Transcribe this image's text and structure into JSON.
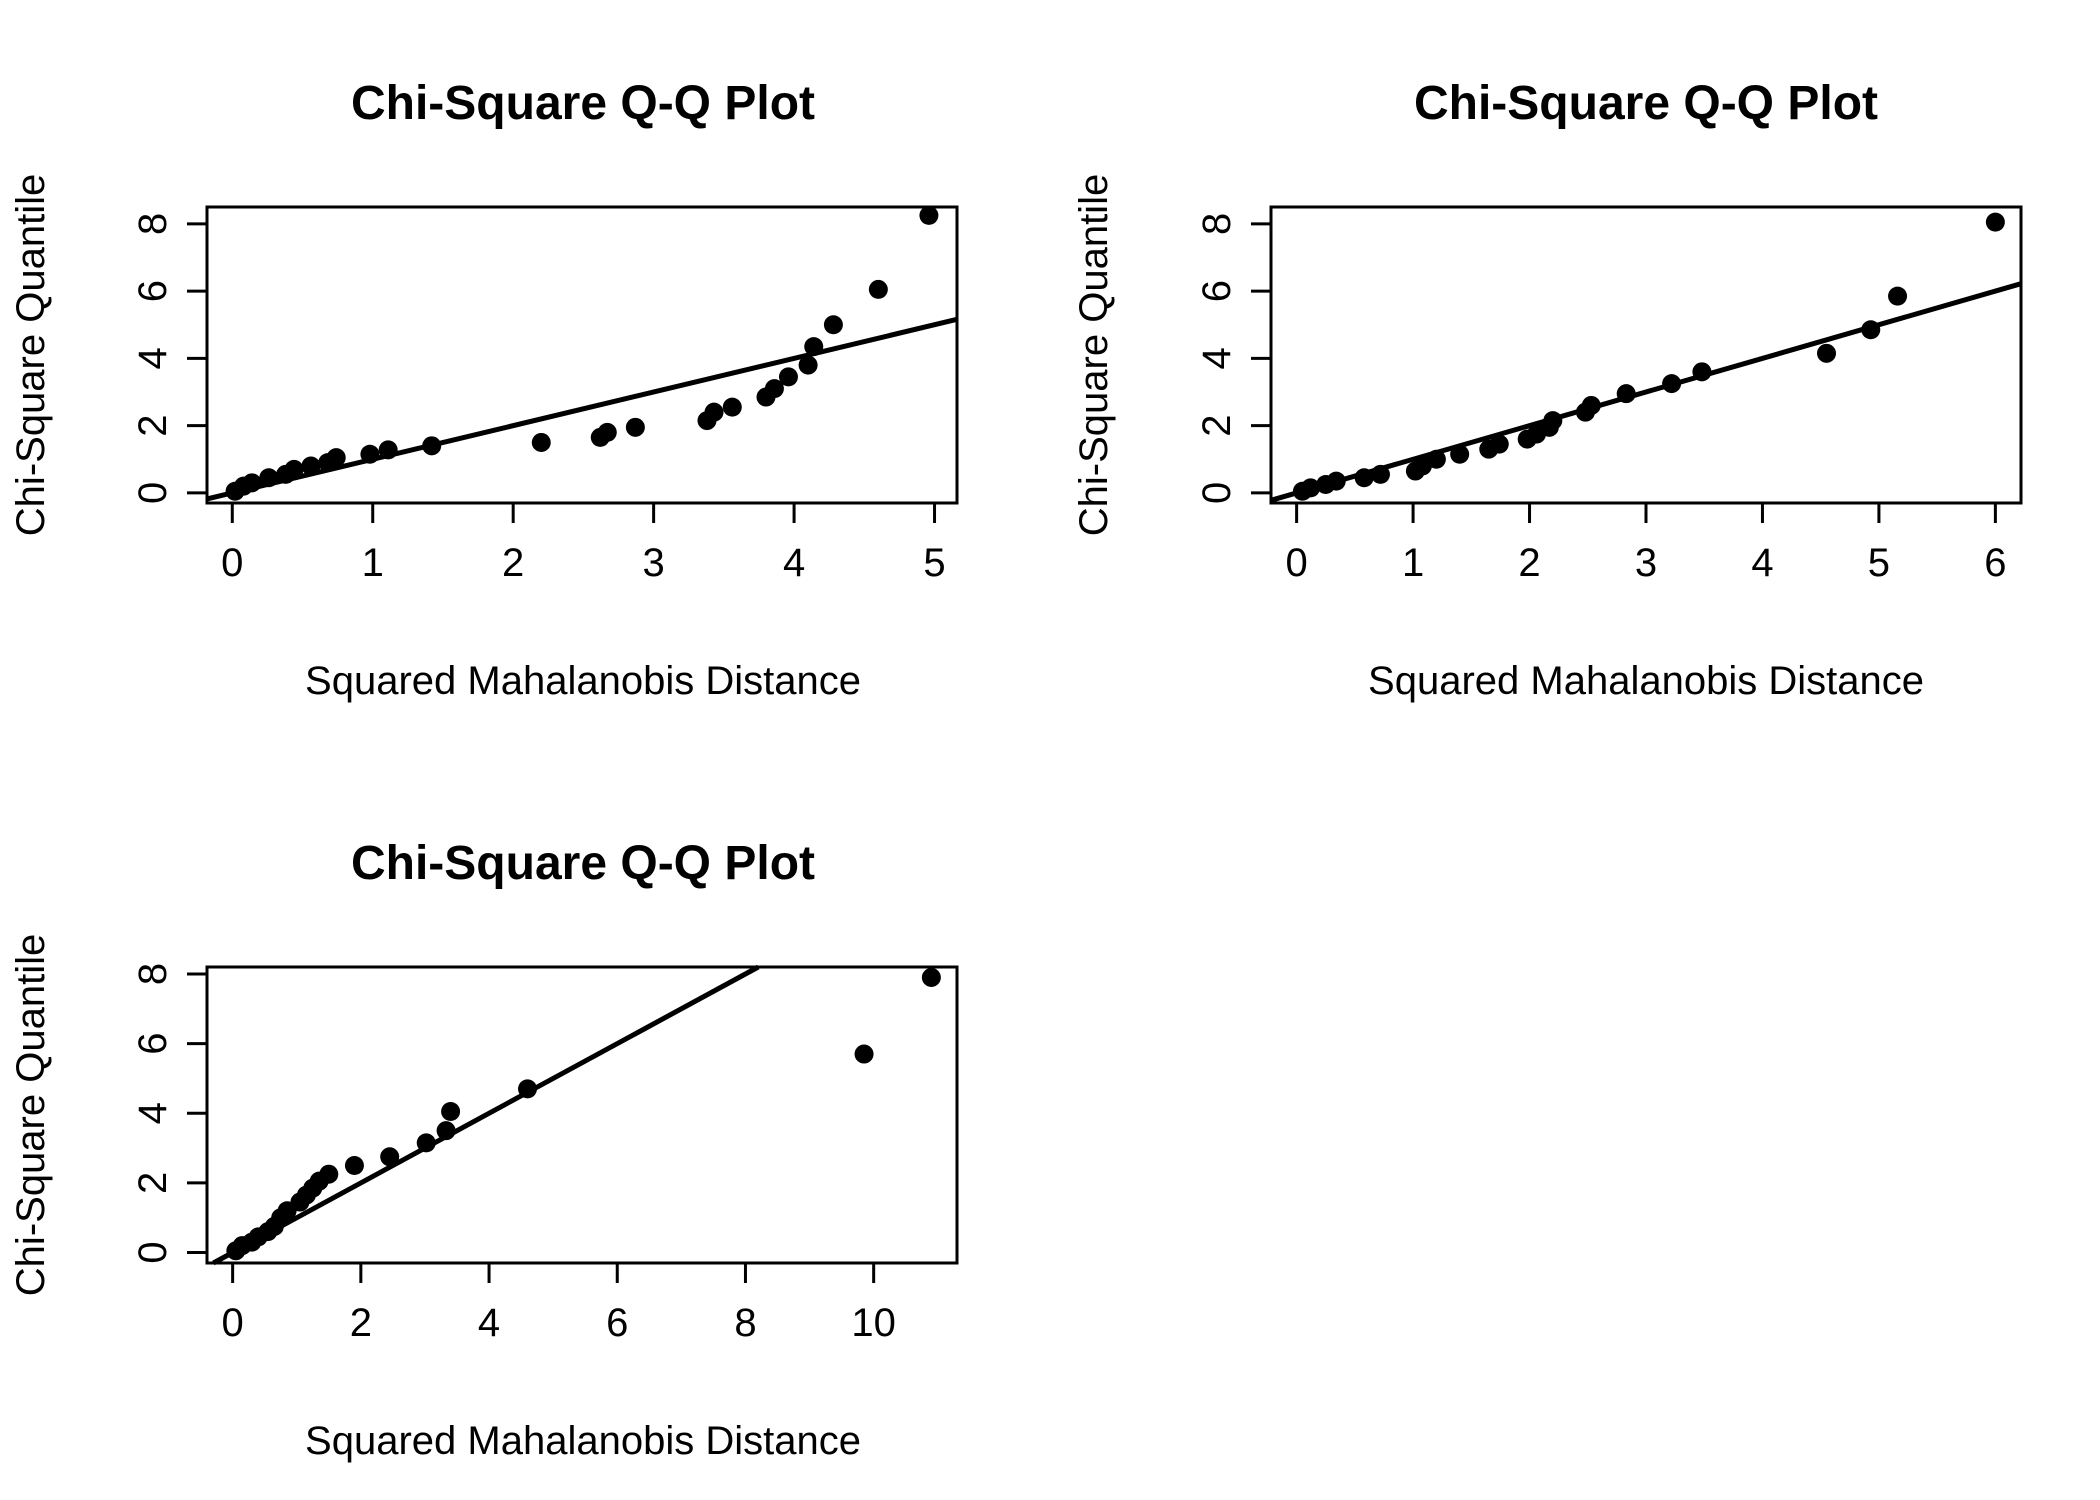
{
  "chart_data": [
    {
      "type": "scatter",
      "title": "Chi-Square Q-Q Plot",
      "xlabel": "Squared Mahalanobis Distance",
      "ylabel": "Chi-Square Quantile",
      "xlim": [
        -0.18,
        5.16
      ],
      "ylim": [
        -0.3,
        8.5
      ],
      "xticks": [
        0,
        1,
        2,
        3,
        4,
        5
      ],
      "yticks": [
        0,
        2,
        4,
        6,
        8
      ],
      "reference_line": {
        "intercept": 0,
        "slope": 1
      },
      "x": [
        0.02,
        0.08,
        0.14,
        0.26,
        0.38,
        0.44,
        0.56,
        0.68,
        0.74,
        0.98,
        1.11,
        1.42,
        2.2,
        2.62,
        2.67,
        2.87,
        3.38,
        3.43,
        3.56,
        3.8,
        3.86,
        3.96,
        4.1,
        4.14,
        4.28,
        4.6,
        4.96
      ],
      "y": [
        0.05,
        0.2,
        0.3,
        0.45,
        0.55,
        0.7,
        0.8,
        0.9,
        1.05,
        1.15,
        1.28,
        1.4,
        1.5,
        1.65,
        1.8,
        1.95,
        2.15,
        2.4,
        2.55,
        2.85,
        3.1,
        3.45,
        3.8,
        4.35,
        5.0,
        6.05,
        8.25
      ]
    },
    {
      "type": "scatter",
      "title": "Chi-Square Q-Q Plot",
      "xlabel": "Squared Mahalanobis Distance",
      "ylabel": "Chi-Square Quantile",
      "xlim": [
        -0.22,
        6.22
      ],
      "ylim": [
        -0.3,
        8.5
      ],
      "xticks": [
        0,
        1,
        2,
        3,
        4,
        5,
        6
      ],
      "yticks": [
        0,
        2,
        4,
        6,
        8
      ],
      "reference_line": {
        "intercept": 0,
        "slope": 1
      },
      "x": [
        0.05,
        0.12,
        0.25,
        0.34,
        0.58,
        0.72,
        1.02,
        1.08,
        1.2,
        1.4,
        1.65,
        1.74,
        1.98,
        2.06,
        2.17,
        2.2,
        2.48,
        2.53,
        2.83,
        3.22,
        3.48,
        4.55,
        4.93,
        5.16,
        6.0
      ],
      "y": [
        0.05,
        0.15,
        0.25,
        0.35,
        0.45,
        0.55,
        0.65,
        0.8,
        1.0,
        1.15,
        1.3,
        1.45,
        1.6,
        1.75,
        1.95,
        2.15,
        2.4,
        2.6,
        2.95,
        3.25,
        3.6,
        4.15,
        4.85,
        5.85,
        8.05
      ]
    },
    {
      "type": "scatter",
      "title": "Chi-Square Q-Q Plot",
      "xlabel": "Squared Mahalanobis Distance",
      "ylabel": "Chi-Square Quantile",
      "xlim": [
        -0.4,
        11.3
      ],
      "ylim": [
        -0.3,
        8.2
      ],
      "xticks": [
        0,
        2,
        4,
        6,
        8,
        10
      ],
      "yticks": [
        0,
        2,
        4,
        6,
        8
      ],
      "reference_line": {
        "intercept": 0,
        "slope": 1
      },
      "x": [
        0.05,
        0.15,
        0.3,
        0.4,
        0.55,
        0.65,
        0.75,
        0.85,
        1.05,
        1.15,
        1.25,
        1.35,
        1.5,
        1.9,
        2.45,
        3.02,
        3.33,
        3.4,
        4.6,
        9.85,
        10.9
      ],
      "y": [
        0.05,
        0.2,
        0.3,
        0.45,
        0.6,
        0.75,
        1.0,
        1.2,
        1.45,
        1.65,
        1.85,
        2.05,
        2.25,
        2.5,
        2.75,
        3.15,
        3.5,
        4.05,
        4.7,
        5.7,
        7.9
      ]
    }
  ]
}
